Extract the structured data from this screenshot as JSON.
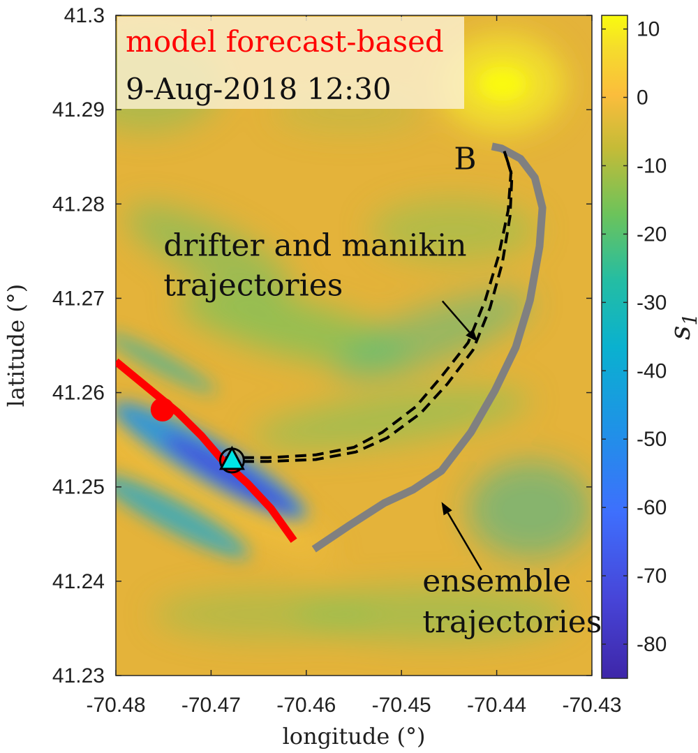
{
  "chart_data": {
    "type": "heatmap",
    "title_line1": "model forecast-based",
    "title_line2": "9-Aug-2018 12:30",
    "xlabel": "longitude (°)",
    "ylabel": "latitude (°)",
    "xlim": [
      -70.48,
      -70.43
    ],
    "ylim": [
      41.23,
      41.3
    ],
    "x_ticks": [
      -70.48,
      -70.47,
      -70.46,
      -70.45,
      -70.44,
      -70.43
    ],
    "x_tick_labels": [
      "-70.48",
      "-70.47",
      "-70.46",
      "-70.45",
      "-70.44",
      "-70.43"
    ],
    "y_ticks": [
      41.23,
      41.24,
      41.25,
      41.26,
      41.27,
      41.28,
      41.29,
      41.3
    ],
    "y_tick_labels": [
      "41.23",
      "41.24",
      "41.25",
      "41.26",
      "41.27",
      "41.28",
      "41.29",
      "41.3"
    ],
    "colorbar": {
      "label": "s",
      "label_subscript": "1",
      "range": [
        -85,
        12
      ],
      "ticks": [
        10,
        0,
        -10,
        -20,
        -30,
        -40,
        -50,
        -60,
        -70,
        -80
      ],
      "tick_labels": [
        "10",
        "0",
        "-10",
        "-20",
        "-30",
        "-40",
        "-50",
        "-60",
        "-70",
        "-80"
      ],
      "colormap": "parula"
    },
    "series": [
      {
        "name": "model forecast-based trajectory (red)",
        "color": "#ff0000",
        "style": "solid",
        "lon": [
          -70.48,
          -70.4765,
          -70.4735,
          -70.471,
          -70.4687,
          -70.4662,
          -70.4637,
          -70.4613
        ],
        "lat": [
          41.2633,
          41.2604,
          41.2579,
          41.2554,
          41.2527,
          41.2504,
          41.2477,
          41.2443
        ]
      },
      {
        "name": "ensemble trajectories",
        "color": "#808080",
        "style": "solid",
        "lon": [
          -70.4592,
          -70.4555,
          -70.4518,
          -70.4488,
          -70.4458,
          -70.4427,
          -70.4402,
          -70.438,
          -70.4365,
          -70.4355,
          -70.4352,
          -70.436,
          -70.4375,
          -70.4395,
          -70.4405
        ],
        "lat": [
          41.2434,
          41.2459,
          41.2483,
          41.2497,
          41.2517,
          41.2558,
          41.2602,
          41.2648,
          41.2698,
          41.2755,
          41.2796,
          41.2828,
          41.2848,
          41.2859,
          41.2861
        ]
      },
      {
        "name": "drifter trajectory",
        "color": "#000000",
        "style": "dashed",
        "lon": [
          -70.4685,
          -70.464,
          -70.459,
          -70.455,
          -70.452,
          -70.4485,
          -70.4458,
          -70.443,
          -70.4412,
          -70.4398,
          -70.4388,
          -70.4385,
          -70.4392
        ],
        "lat": [
          41.2531,
          41.2531,
          41.2534,
          41.2542,
          41.2558,
          41.2585,
          41.2617,
          41.2653,
          41.2698,
          41.2745,
          41.2793,
          41.2834,
          41.2856
        ]
      },
      {
        "name": "manikin trajectory",
        "color": "#000000",
        "style": "dashed",
        "lon": [
          -70.4685,
          -70.464,
          -70.459,
          -70.4548,
          -70.4515,
          -70.448,
          -70.4452,
          -70.4425,
          -70.4407,
          -70.4394,
          -70.4386,
          -70.4384,
          -70.4392
        ],
        "lat": [
          41.2527,
          41.2527,
          41.2529,
          41.2537,
          41.2552,
          41.2578,
          41.2609,
          41.2645,
          41.269,
          41.2738,
          41.2787,
          41.283,
          41.2856
        ]
      }
    ],
    "markers": [
      {
        "name": "red-start-dot",
        "lon": -70.4751,
        "lat": 41.2582,
        "color": "#ff0000",
        "shape": "circle"
      },
      {
        "name": "circle-marker",
        "lon": -70.4678,
        "lat": 41.2528,
        "color": "#000000",
        "shape": "open-circle"
      },
      {
        "name": "triangle-marker",
        "lon": -70.4678,
        "lat": 41.2528,
        "color": "#00e5e5",
        "shape": "triangle"
      }
    ],
    "annotations": [
      {
        "name": "label-b",
        "text": "B",
        "lon": -70.4445,
        "lat": 41.2837
      },
      {
        "name": "drifter-label-line1",
        "text": "drifter and manikin",
        "lon": -70.475,
        "lat": 41.2745
      },
      {
        "name": "drifter-label-line2",
        "text": "trajectories",
        "lon": -70.475,
        "lat": 41.2703
      },
      {
        "name": "ensemble-label-line1",
        "text": "ensemble",
        "lon": -70.4478,
        "lat": 41.2389
      },
      {
        "name": "ensemble-label-line2",
        "text": "trajectories",
        "lon": -70.4478,
        "lat": 41.2346
      }
    ],
    "arrows": [
      {
        "name": "drifter-arrow",
        "from": [
          -70.4457,
          41.2697
        ],
        "to": [
          -70.442,
          41.2654
        ]
      },
      {
        "name": "ensemble-arrow",
        "from": [
          -70.4416,
          41.2412
        ],
        "to": [
          -70.4458,
          41.2484
        ]
      }
    ]
  }
}
